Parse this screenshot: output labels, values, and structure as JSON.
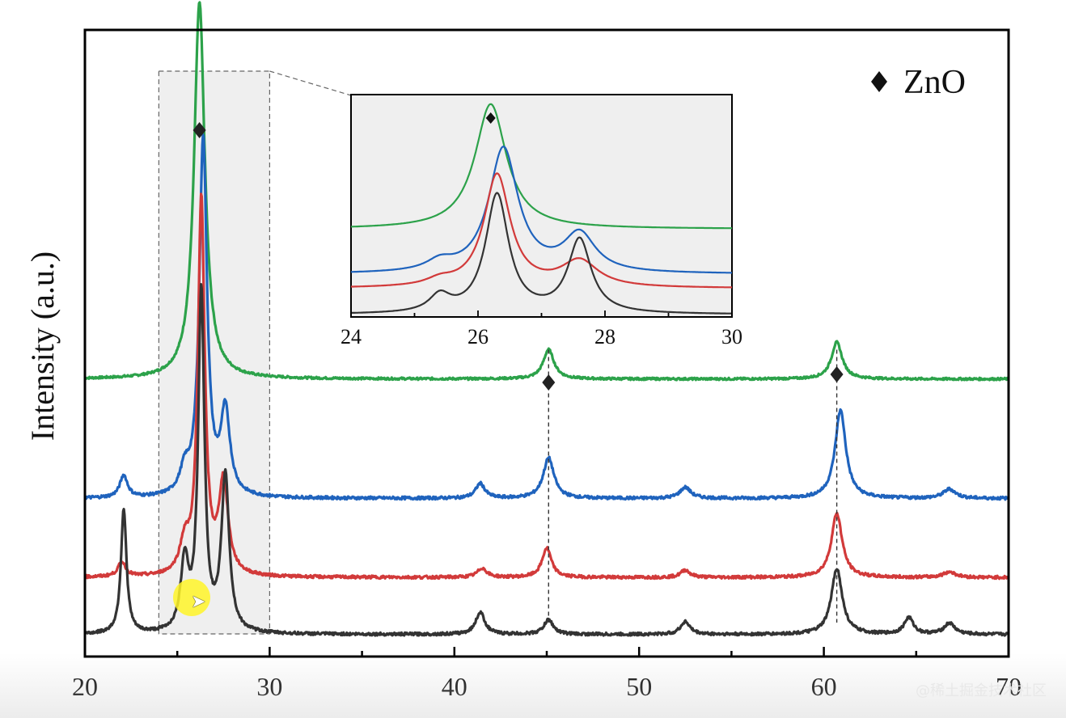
{
  "chart_data": {
    "type": "line",
    "xlabel": "",
    "ylabel": "Intensity (a.u.)",
    "xlim": [
      20,
      70
    ],
    "xticks": [
      20,
      30,
      40,
      50,
      60,
      70
    ],
    "legend": {
      "marker": "♦",
      "label": "ZnO",
      "placement": "top-right"
    },
    "peak_markers": [
      26.2,
      45.1,
      60.7
    ],
    "series": [
      {
        "color": "#2ca24a",
        "baseline": 0.65,
        "noise": 0.006,
        "peaks": [
          [
            26.2,
            2.05,
            0.35
          ],
          [
            45.1,
            0.16,
            0.35
          ],
          [
            60.7,
            0.2,
            0.35
          ]
        ]
      },
      {
        "color": "#1f63bd",
        "baseline": 0.0,
        "noise": 0.008,
        "peaks": [
          [
            22.1,
            0.12,
            0.25
          ],
          [
            25.4,
            0.12,
            0.3
          ],
          [
            26.4,
            1.95,
            0.25
          ],
          [
            27.6,
            0.45,
            0.3
          ],
          [
            41.4,
            0.08,
            0.3
          ],
          [
            45.1,
            0.22,
            0.35
          ],
          [
            52.5,
            0.06,
            0.35
          ],
          [
            60.9,
            0.48,
            0.35
          ],
          [
            66.8,
            0.05,
            0.4
          ]
        ]
      },
      {
        "color": "#d23a3a",
        "baseline": -0.43,
        "noise": 0.008,
        "peaks": [
          [
            22.0,
            0.08,
            0.25
          ],
          [
            25.4,
            0.16,
            0.3
          ],
          [
            26.3,
            2.05,
            0.22
          ],
          [
            27.5,
            0.5,
            0.3
          ],
          [
            41.5,
            0.05,
            0.3
          ],
          [
            45.0,
            0.16,
            0.3
          ],
          [
            52.5,
            0.04,
            0.3
          ],
          [
            60.7,
            0.35,
            0.35
          ],
          [
            66.8,
            0.03,
            0.4
          ]
        ]
      },
      {
        "color": "#333333",
        "baseline": -0.74,
        "noise": 0.008,
        "peaks": [
          [
            22.1,
            0.68,
            0.18
          ],
          [
            25.4,
            0.38,
            0.25
          ],
          [
            26.3,
            1.85,
            0.2
          ],
          [
            27.6,
            0.85,
            0.25
          ],
          [
            41.4,
            0.12,
            0.3
          ],
          [
            45.1,
            0.08,
            0.3
          ],
          [
            52.5,
            0.07,
            0.3
          ],
          [
            60.7,
            0.36,
            0.35
          ],
          [
            64.6,
            0.09,
            0.3
          ],
          [
            66.8,
            0.06,
            0.35
          ]
        ]
      }
    ],
    "inset": {
      "xlim": [
        24,
        30
      ],
      "xticks": [
        24,
        26,
        28,
        30
      ],
      "marker_x": 26.2,
      "series": [
        {
          "color": "#2ca24a",
          "baseline": 0.72,
          "peaks": [
            [
              26.2,
              1.05,
              0.3
            ]
          ]
        },
        {
          "color": "#1f63bd",
          "baseline": 0.34,
          "peaks": [
            [
              25.4,
              0.08,
              0.25
            ],
            [
              26.4,
              1.05,
              0.28
            ],
            [
              27.6,
              0.32,
              0.3
            ]
          ]
        },
        {
          "color": "#d23a3a",
          "baseline": 0.22,
          "peaks": [
            [
              25.4,
              0.05,
              0.25
            ],
            [
              26.3,
              0.95,
              0.25
            ],
            [
              27.6,
              0.22,
              0.35
            ]
          ]
        },
        {
          "color": "#333333",
          "baseline": 0.0,
          "peaks": [
            [
              25.4,
              0.14,
              0.2
            ],
            [
              26.3,
              1.0,
              0.22
            ],
            [
              27.6,
              0.62,
              0.22
            ]
          ]
        }
      ]
    }
  },
  "watermark": "@稀土掘金技术社区"
}
